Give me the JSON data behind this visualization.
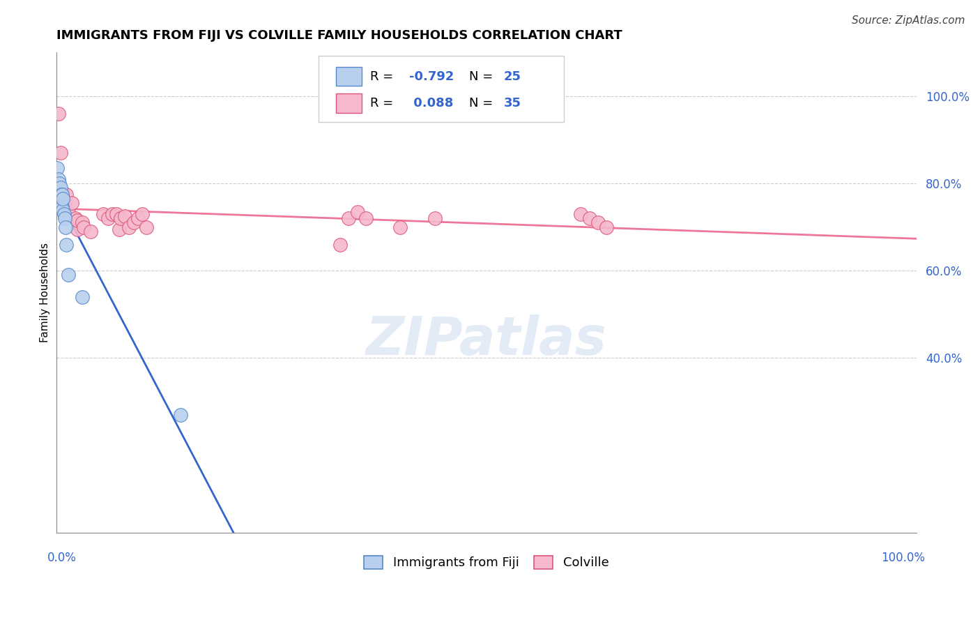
{
  "title": "IMMIGRANTS FROM FIJI VS COLVILLE FAMILY HOUSEHOLDS CORRELATION CHART",
  "source": "Source: ZipAtlas.com",
  "ylabel": "Family Households",
  "background_color": "#ffffff",
  "watermark": "ZIPatlas",
  "fiji_x": [
    0.001,
    0.002,
    0.002,
    0.003,
    0.003,
    0.003,
    0.004,
    0.004,
    0.004,
    0.005,
    0.005,
    0.005,
    0.006,
    0.006,
    0.007,
    0.007,
    0.008,
    0.008,
    0.009,
    0.01,
    0.011,
    0.012,
    0.014,
    0.03,
    0.145
  ],
  "fiji_y": [
    0.835,
    0.79,
    0.8,
    0.78,
    0.77,
    0.81,
    0.755,
    0.78,
    0.8,
    0.76,
    0.775,
    0.79,
    0.755,
    0.775,
    0.745,
    0.775,
    0.74,
    0.765,
    0.73,
    0.72,
    0.7,
    0.66,
    0.59,
    0.54,
    0.27
  ],
  "colville_x": [
    0.003,
    0.005,
    0.007,
    0.01,
    0.012,
    0.015,
    0.018,
    0.022,
    0.025,
    0.025,
    0.03,
    0.032,
    0.04,
    0.055,
    0.06,
    0.065,
    0.07,
    0.073,
    0.075,
    0.08,
    0.085,
    0.09,
    0.095,
    0.1,
    0.105,
    0.33,
    0.34,
    0.35,
    0.36,
    0.4,
    0.44,
    0.61,
    0.62,
    0.63,
    0.64
  ],
  "colville_y": [
    0.96,
    0.87,
    0.78,
    0.755,
    0.775,
    0.73,
    0.755,
    0.72,
    0.695,
    0.715,
    0.71,
    0.7,
    0.69,
    0.73,
    0.72,
    0.73,
    0.73,
    0.695,
    0.72,
    0.725,
    0.7,
    0.71,
    0.72,
    0.73,
    0.7,
    0.66,
    0.72,
    0.735,
    0.72,
    0.7,
    0.72,
    0.73,
    0.72,
    0.71,
    0.7
  ],
  "fiji_color": "#b8d0ee",
  "colville_color": "#f5b8cc",
  "fiji_line_color": "#3366cc",
  "colville_line_color": "#ee7799",
  "fiji_edge_color": "#5588cc",
  "colville_edge_color": "#dd5577",
  "fiji_R": -0.792,
  "fiji_N": 25,
  "colville_R": 0.088,
  "colville_N": 35,
  "stat_value_color": "#3366cc",
  "xlim": [
    0.0,
    1.0
  ],
  "ylim": [
    0.0,
    1.1
  ],
  "yticks": [
    0.4,
    0.6,
    0.8,
    1.0
  ],
  "ytick_labels": [
    "40.0%",
    "60.0%",
    "80.0%",
    "100.0%"
  ],
  "title_fontsize": 13,
  "axis_fontsize": 11,
  "tick_fontsize": 12,
  "legend_fontsize": 13,
  "source_fontsize": 11,
  "watermark_fontsize": 55
}
